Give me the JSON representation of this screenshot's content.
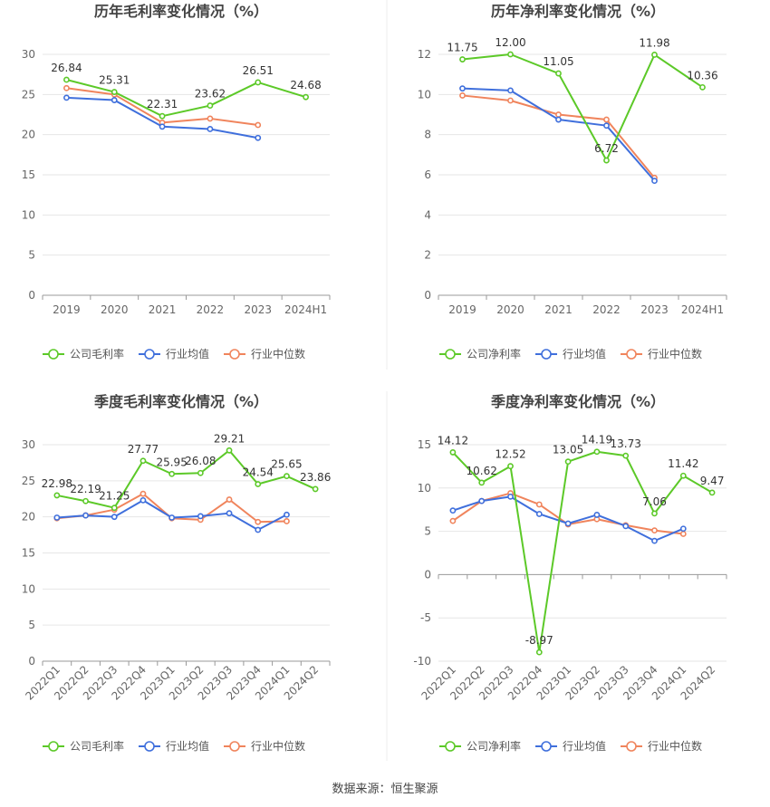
{
  "footer": "数据来源：恒生聚源",
  "colors": {
    "company": "#5cc928",
    "avg": "#3f6fdc",
    "median": "#f0845c",
    "grid": "#e6e6e6",
    "axis": "#666666"
  },
  "chart_data": [
    {
      "type": "line",
      "title": "历年毛利率变化情况（%）",
      "categories": [
        "2019",
        "2020",
        "2021",
        "2022",
        "2023",
        "2024H1"
      ],
      "ylim": [
        0,
        30
      ],
      "yticks": [
        0,
        5,
        10,
        15,
        20,
        25,
        30
      ],
      "rotate_x": false,
      "series": [
        {
          "name": "公司毛利率",
          "values": [
            26.84,
            25.31,
            22.31,
            23.62,
            26.51,
            24.68
          ],
          "labels": [
            "26.84",
            "25.31",
            "22.31",
            "23.62",
            "26.51",
            "24.68"
          ]
        },
        {
          "name": "行业均值",
          "values": [
            24.6,
            24.3,
            21.0,
            20.7,
            19.6,
            null
          ]
        },
        {
          "name": "行业中位数",
          "values": [
            25.8,
            25.0,
            21.5,
            22.0,
            21.2,
            null
          ]
        }
      ]
    },
    {
      "type": "line",
      "title": "历年净利率变化情况（%）",
      "categories": [
        "2019",
        "2020",
        "2021",
        "2022",
        "2023",
        "2024H1"
      ],
      "ylim": [
        0,
        12
      ],
      "yticks": [
        0,
        2,
        4,
        6,
        8,
        10,
        12
      ],
      "rotate_x": false,
      "series": [
        {
          "name": "公司净利率",
          "values": [
            11.75,
            12.0,
            11.05,
            6.72,
            11.98,
            10.36
          ],
          "labels": [
            "11.75",
            "12.00",
            "11.05",
            "6.72",
            "11.98",
            "10.36"
          ]
        },
        {
          "name": "行业均值",
          "values": [
            10.3,
            10.2,
            8.75,
            8.45,
            5.7,
            null
          ]
        },
        {
          "name": "行业中位数",
          "values": [
            9.95,
            9.7,
            9.0,
            8.75,
            5.85,
            null
          ]
        }
      ]
    },
    {
      "type": "line",
      "title": "季度毛利率变化情况（%）",
      "categories": [
        "2022Q1",
        "2022Q2",
        "2022Q3",
        "2022Q4",
        "2023Q1",
        "2023Q2",
        "2023Q3",
        "2023Q4",
        "2024Q1",
        "2024Q2"
      ],
      "ylim": [
        0,
        30
      ],
      "yticks": [
        0,
        5,
        10,
        15,
        20,
        25,
        30
      ],
      "rotate_x": true,
      "series": [
        {
          "name": "公司毛利率",
          "values": [
            22.98,
            22.19,
            21.25,
            27.77,
            25.95,
            26.08,
            29.21,
            24.54,
            25.65,
            23.86
          ],
          "labels": [
            "22.98",
            "22.19",
            "21.25",
            "27.77",
            "25.95",
            "26.08",
            "29.21",
            "24.54",
            "25.65",
            "23.86"
          ]
        },
        {
          "name": "行业均值",
          "values": [
            19.9,
            20.2,
            20.0,
            22.3,
            19.9,
            20.1,
            20.5,
            18.2,
            20.3,
            null
          ]
        },
        {
          "name": "行业中位数",
          "values": [
            19.8,
            20.2,
            21.0,
            23.2,
            19.8,
            19.6,
            22.4,
            19.3,
            19.4,
            null
          ]
        }
      ]
    },
    {
      "type": "line",
      "title": "季度净利率变化情况（%）",
      "categories": [
        "2022Q1",
        "2022Q2",
        "2022Q3",
        "2022Q4",
        "2023Q1",
        "2023Q2",
        "2023Q3",
        "2023Q4",
        "2024Q1",
        "2024Q2"
      ],
      "ylim": [
        -10,
        15
      ],
      "yticks": [
        -10,
        -5,
        0,
        5,
        10,
        15
      ],
      "rotate_x": true,
      "series": [
        {
          "name": "公司净利率",
          "values": [
            14.12,
            10.62,
            12.52,
            -8.97,
            13.05,
            14.19,
            13.73,
            7.06,
            11.42,
            9.47
          ],
          "labels": [
            "14.12",
            "10.62",
            "12.52",
            "-8.97",
            "13.05",
            "14.19",
            "13.73",
            "7.06",
            "11.42",
            "9.47"
          ]
        },
        {
          "name": "行业均值",
          "values": [
            7.4,
            8.5,
            9.0,
            7.0,
            5.9,
            6.9,
            5.6,
            3.9,
            5.3,
            null
          ]
        },
        {
          "name": "行业中位数",
          "values": [
            6.2,
            8.5,
            9.4,
            8.1,
            5.8,
            6.4,
            5.7,
            5.1,
            4.7,
            null
          ]
        }
      ]
    }
  ]
}
